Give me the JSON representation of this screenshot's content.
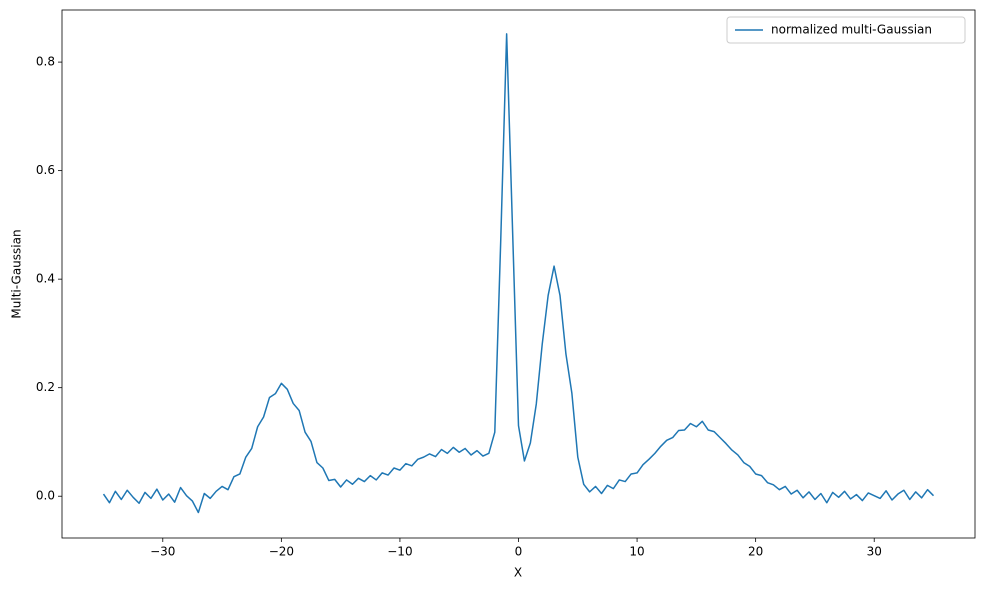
{
  "chart_data": {
    "type": "line",
    "xlabel": "X",
    "ylabel": "Multi-Gaussian",
    "x": [
      -35,
      -34.5,
      -34,
      -33.5,
      -33,
      -32.5,
      -32,
      -31.5,
      -31,
      -30.5,
      -30,
      -29.5,
      -29,
      -28.5,
      -28,
      -27.5,
      -27,
      -26.5,
      -26,
      -25.5,
      -25,
      -24.5,
      -24,
      -23.5,
      -23,
      -22.5,
      -22,
      -21.5,
      -21,
      -20.5,
      -20,
      -19.5,
      -19,
      -18.5,
      -18,
      -17.5,
      -17,
      -16.5,
      -16,
      -15.5,
      -15,
      -14.5,
      -14,
      -13.5,
      -13,
      -12.5,
      -12,
      -11.5,
      -11,
      -10.5,
      -10,
      -9.5,
      -9,
      -8.5,
      -8,
      -7.5,
      -7,
      -6.5,
      -6,
      -5.5,
      -5,
      -4.5,
      -4,
      -3.5,
      -3,
      -2.5,
      -2,
      -1.5,
      -1,
      -0.5,
      0,
      0.5,
      1,
      1.5,
      2,
      2.5,
      3,
      3.5,
      4,
      4.5,
      5,
      5.5,
      6,
      6.5,
      7,
      7.5,
      8,
      8.5,
      9,
      9.5,
      10,
      10.5,
      11,
      11.5,
      12,
      12.5,
      13,
      13.5,
      14,
      14.5,
      15,
      15.5,
      16,
      16.5,
      17,
      17.5,
      18,
      18.5,
      19,
      19.5,
      20,
      20.5,
      21,
      21.5,
      22,
      22.5,
      23,
      23.5,
      24,
      24.5,
      25,
      25.5,
      26,
      26.5,
      27,
      27.5,
      28,
      28.5,
      29,
      29.5,
      30,
      30.5,
      31,
      31.5,
      32,
      32.5,
      33,
      33.5,
      34,
      34.5,
      35
    ],
    "series": [
      {
        "name": "normalized multi-Gaussian",
        "color": "#1f77b4",
        "values": [
          0.004,
          -0.012,
          0.009,
          -0.006,
          0.011,
          -0.002,
          -0.013,
          0.007,
          -0.004,
          0.013,
          -0.007,
          0.004,
          -0.011,
          0.016,
          0.001,
          -0.009,
          -0.03,
          0.005,
          -0.004,
          0.009,
          0.018,
          0.012,
          0.036,
          0.041,
          0.072,
          0.088,
          0.128,
          0.146,
          0.182,
          0.189,
          0.208,
          0.197,
          0.171,
          0.158,
          0.118,
          0.101,
          0.062,
          0.052,
          0.029,
          0.031,
          0.017,
          0.03,
          0.022,
          0.033,
          0.027,
          0.038,
          0.03,
          0.043,
          0.039,
          0.052,
          0.048,
          0.06,
          0.056,
          0.068,
          0.072,
          0.078,
          0.073,
          0.086,
          0.079,
          0.09,
          0.081,
          0.088,
          0.076,
          0.084,
          0.074,
          0.079,
          0.118,
          0.47,
          0.852,
          0.49,
          0.13,
          0.065,
          0.098,
          0.17,
          0.28,
          0.37,
          0.424,
          0.37,
          0.262,
          0.19,
          0.072,
          0.022,
          0.008,
          0.018,
          0.005,
          0.02,
          0.014,
          0.03,
          0.027,
          0.041,
          0.043,
          0.058,
          0.068,
          0.079,
          0.092,
          0.103,
          0.108,
          0.121,
          0.122,
          0.134,
          0.128,
          0.138,
          0.122,
          0.119,
          0.108,
          0.097,
          0.085,
          0.076,
          0.062,
          0.055,
          0.041,
          0.038,
          0.025,
          0.021,
          0.012,
          0.018,
          0.004,
          0.011,
          -0.003,
          0.008,
          -0.006,
          0.005,
          -0.012,
          0.007,
          -0.002,
          0.009,
          -0.005,
          0.003,
          -0.008,
          0.006,
          0.001,
          -0.004,
          0.01,
          -0.007,
          0.004,
          0.011,
          -0.006,
          0.008,
          -0.003,
          0.012,
          0.001
        ]
      }
    ],
    "xlim": [
      -38.5,
      38.5
    ],
    "xticks": [
      {
        "value": -30,
        "label": "−30"
      },
      {
        "value": -20,
        "label": "−20"
      },
      {
        "value": -10,
        "label": "−10"
      },
      0,
      10,
      20,
      30
    ],
    "ylim": [
      -0.077,
      0.896
    ],
    "yticks": [
      {
        "value": 0,
        "label": "0.0"
      },
      0.2,
      0.4,
      0.6,
      0.8
    ],
    "legend": "upper right"
  }
}
